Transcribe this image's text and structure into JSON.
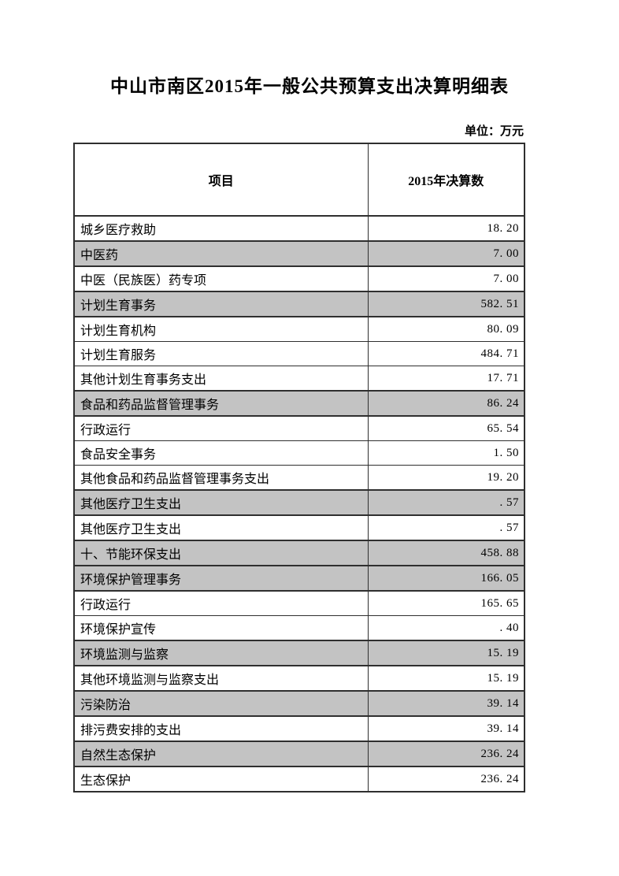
{
  "page": {
    "title": "中山市南区2015年一般公共预算支出决算明细表",
    "unit_label": "单位：万元"
  },
  "colors": {
    "shaded_row_bg": "#c3c3c3",
    "border": "#2f2f2f",
    "text": "#000000"
  },
  "table": {
    "columns": [
      "项目",
      "2015年决算数"
    ],
    "rows": [
      {
        "label": "城乡医疗救助",
        "value": "18. 20",
        "shaded": false
      },
      {
        "label": "中医药",
        "value": "7. 00",
        "shaded": true
      },
      {
        "label": "中医（民族医）药专项",
        "value": "7. 00",
        "shaded": false
      },
      {
        "label": "计划生育事务",
        "value": "582. 51",
        "shaded": true
      },
      {
        "label": "计划生育机构",
        "value": "80. 09",
        "shaded": false
      },
      {
        "label": "计划生育服务",
        "value": "484. 71",
        "shaded": false
      },
      {
        "label": "其他计划生育事务支出",
        "value": "17. 71",
        "shaded": false
      },
      {
        "label": "食品和药品监督管理事务",
        "value": "86. 24",
        "shaded": true
      },
      {
        "label": "行政运行",
        "value": "65. 54",
        "shaded": false
      },
      {
        "label": "食品安全事务",
        "value": "1. 50",
        "shaded": false
      },
      {
        "label": "其他食品和药品监督管理事务支出",
        "value": "19. 20",
        "shaded": false
      },
      {
        "label": "其他医疗卫生支出",
        "value": ". 57",
        "shaded": true
      },
      {
        "label": "其他医疗卫生支出",
        "value": ". 57",
        "shaded": false
      },
      {
        "label": "十、节能环保支出",
        "value": "458. 88",
        "shaded": true
      },
      {
        "label": "环境保护管理事务",
        "value": "166. 05",
        "shaded": true
      },
      {
        "label": "行政运行",
        "value": "165. 65",
        "shaded": false
      },
      {
        "label": "环境保护宣传",
        "value": ". 40",
        "shaded": false
      },
      {
        "label": "环境监测与监察",
        "value": "15. 19",
        "shaded": true
      },
      {
        "label": "其他环境监测与监察支出",
        "value": "15. 19",
        "shaded": false
      },
      {
        "label": "污染防治",
        "value": "39. 14",
        "shaded": true
      },
      {
        "label": "排污费安排的支出",
        "value": "39. 14",
        "shaded": false
      },
      {
        "label": "自然生态保护",
        "value": "236. 24",
        "shaded": true
      },
      {
        "label": "生态保护",
        "value": "236. 24",
        "shaded": false
      }
    ]
  }
}
